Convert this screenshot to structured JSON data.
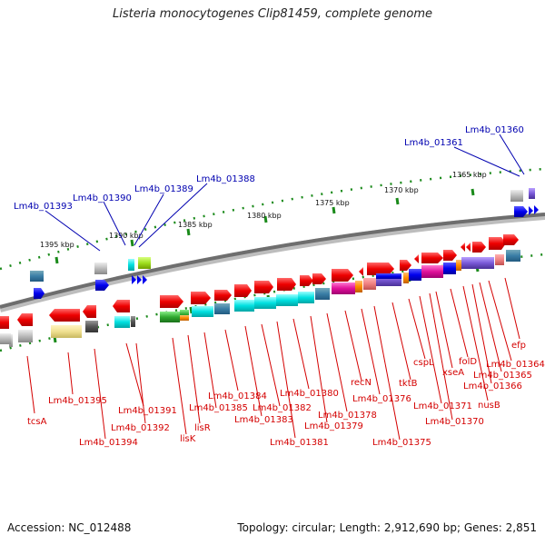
{
  "title": "Listeria monocytogenes Clip81459, complete genome",
  "accession": "Accession: NC_012488",
  "stats": "Topology: circular; Length: 2,912,690 bp; Genes: 2,851",
  "scale_labels": [
    "1395 kbp",
    "1390 kbp",
    "1385 kbp",
    "1380 kbp",
    "1375 kbp",
    "1370 kbp",
    "1365 kbp"
  ],
  "labels_top": [
    "Lm4b_01393",
    "Lm4b_01390",
    "Lm4b_01389",
    "Lm4b_01388",
    "Lm4b_01361",
    "Lm4b_01360"
  ],
  "labels_bottom": [
    "tcsA",
    "Lm4b_01395",
    "Lm4b_01394",
    "Lm4b_01391",
    "Lm4b_01392",
    "lisK",
    "lisR",
    "Lm4b_01385",
    "Lm4b_01384",
    "Lm4b_01383",
    "Lm4b_01382",
    "Lm4b_01381",
    "Lm4b_01380",
    "Lm4b_01379",
    "Lm4b_01378",
    "recN",
    "Lm4b_01376",
    "Lm4b_01375",
    "tktB",
    "cspL",
    "Lm4b_01371",
    "Lm4b_01370",
    "xseA",
    "folD",
    "nusB",
    "Lm4b_01366",
    "Lm4b_01365",
    "Lm4b_01364",
    "efp"
  ],
  "colors": {
    "forward": "#e00000",
    "reverse_small": "#0000ee",
    "backbone": "#777777",
    "tick": "#1a8a1a",
    "label_red": "#d40000",
    "label_blue": "#0000b0"
  }
}
